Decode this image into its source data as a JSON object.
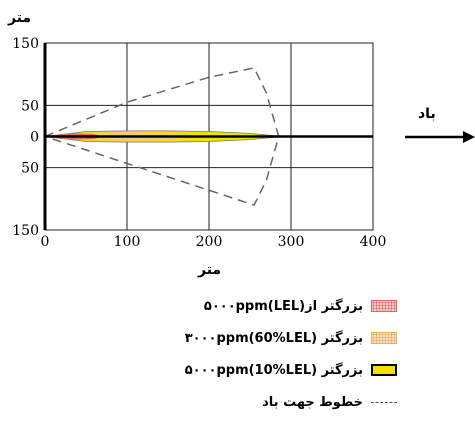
{
  "chart_data": {
    "type": "area",
    "ylabel": "متر",
    "xlabel": "متر",
    "x_ticks": [
      0,
      100,
      200,
      300,
      400
    ],
    "y_ticks": [
      {
        "value": 150,
        "label": "150"
      },
      {
        "value": 50,
        "label": "50"
      },
      {
        "value": 0,
        "label": "0"
      },
      {
        "value": -50,
        "label": "50"
      },
      {
        "value": -150,
        "label": "150"
      }
    ],
    "xlim": [
      0,
      400
    ],
    "ylim": [
      -150,
      150
    ],
    "grid": true,
    "wind": {
      "label": "باد",
      "direction": "right"
    },
    "series": [
      {
        "name": "بزرگتر از۵۰۰۰ppm(LEL)",
        "color": "#e06666",
        "x": [
          0,
          20,
          40,
          60,
          70
        ],
        "half_width": [
          0,
          4,
          5,
          4,
          0
        ]
      },
      {
        "name": "بزرگتر ۳۰۰۰ppm(60%LEL)",
        "color": "#f4c88a",
        "x": [
          0,
          50,
          100,
          150,
          190
        ],
        "half_width": [
          0,
          6,
          7,
          5,
          0
        ]
      },
      {
        "name": "بزرگتر ۵۰۰۰ppm(10%LEL)",
        "color": "#f2e000",
        "x": [
          0,
          50,
          100,
          150,
          200,
          250,
          290
        ],
        "half_width": [
          0,
          8,
          9,
          9,
          8,
          5,
          0
        ]
      },
      {
        "name": "خطوط جهت باد",
        "color": "#666666",
        "x": [
          0,
          100,
          200,
          255,
          270,
          285,
          270,
          255
        ],
        "y": [
          0,
          55,
          95,
          110,
          70,
          0,
          -70,
          -110
        ]
      }
    ]
  },
  "legend": [
    {
      "text": "بزرگتر از۵۰۰۰ppm(LEL)",
      "swatch": "#f7c6c6",
      "swatch_border": "#e06666"
    },
    {
      "text": "بزرگتر ۳۰۰۰ppm(60%LEL)",
      "swatch": "#fbe3c2",
      "swatch_border": "#e0b070"
    },
    {
      "text": "بزرگتر ۵۰۰۰ppm(10%LEL)",
      "swatch": "#f2e000",
      "swatch_border": "#000000"
    },
    {
      "text": "خطوط جهت باد",
      "swatch": "dashed"
    }
  ]
}
